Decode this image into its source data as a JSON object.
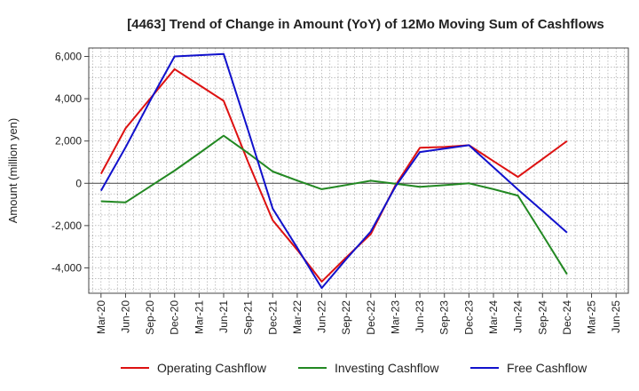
{
  "chart_data": {
    "type": "line",
    "title": "[4463]  Trend of Change in Amount (YoY) of 12Mo Moving Sum of Cashflows",
    "xlabel": "",
    "ylabel": "Amount (million yen)",
    "categories": [
      "Mar-20",
      "Jun-20",
      "Sep-20",
      "Dec-20",
      "Mar-21",
      "Jun-21",
      "Sep-21",
      "Dec-21",
      "Mar-22",
      "Jun-22",
      "Sep-22",
      "Dec-22",
      "Mar-23",
      "Jun-23",
      "Sep-23",
      "Dec-23",
      "Mar-24",
      "Jun-24",
      "Sep-24",
      "Dec-24",
      "Mar-25",
      "Jun-25"
    ],
    "ylim": [
      -5200,
      6400
    ],
    "yticks": [
      -4000,
      -2000,
      0,
      2000,
      4000,
      6000
    ],
    "ytick_labels": [
      "-4,000",
      "-2,000",
      "0",
      "2,000",
      "4,000",
      "6,000"
    ],
    "grid": true,
    "legend_position": "bottom",
    "series": [
      {
        "name": "Operating Cashflow",
        "color": "#dd1111",
        "values": [
          450,
          2600,
          4000,
          5400,
          4650,
          3900,
          1000,
          -1750,
          -3150,
          -4650,
          -3500,
          -2400,
          -100,
          1680,
          1720,
          1800,
          1050,
          300,
          1150,
          2000,
          null,
          null
        ]
      },
      {
        "name": "Investing Cashflow",
        "color": "#228822",
        "values": [
          -850,
          -900,
          -150,
          600,
          1420,
          2250,
          1430,
          560,
          130,
          -280,
          -80,
          120,
          -20,
          -170,
          -90,
          0,
          -280,
          -580,
          -2430,
          -4300,
          null,
          null
        ]
      },
      {
        "name": "Free Cashflow",
        "color": "#1111cc",
        "values": [
          -350,
          1700,
          3900,
          6000,
          6060,
          6120,
          2500,
          -1200,
          -3050,
          -4950,
          -3580,
          -2280,
          -160,
          1480,
          1640,
          1800,
          760,
          -290,
          -1310,
          -2330,
          null,
          null
        ]
      }
    ]
  }
}
